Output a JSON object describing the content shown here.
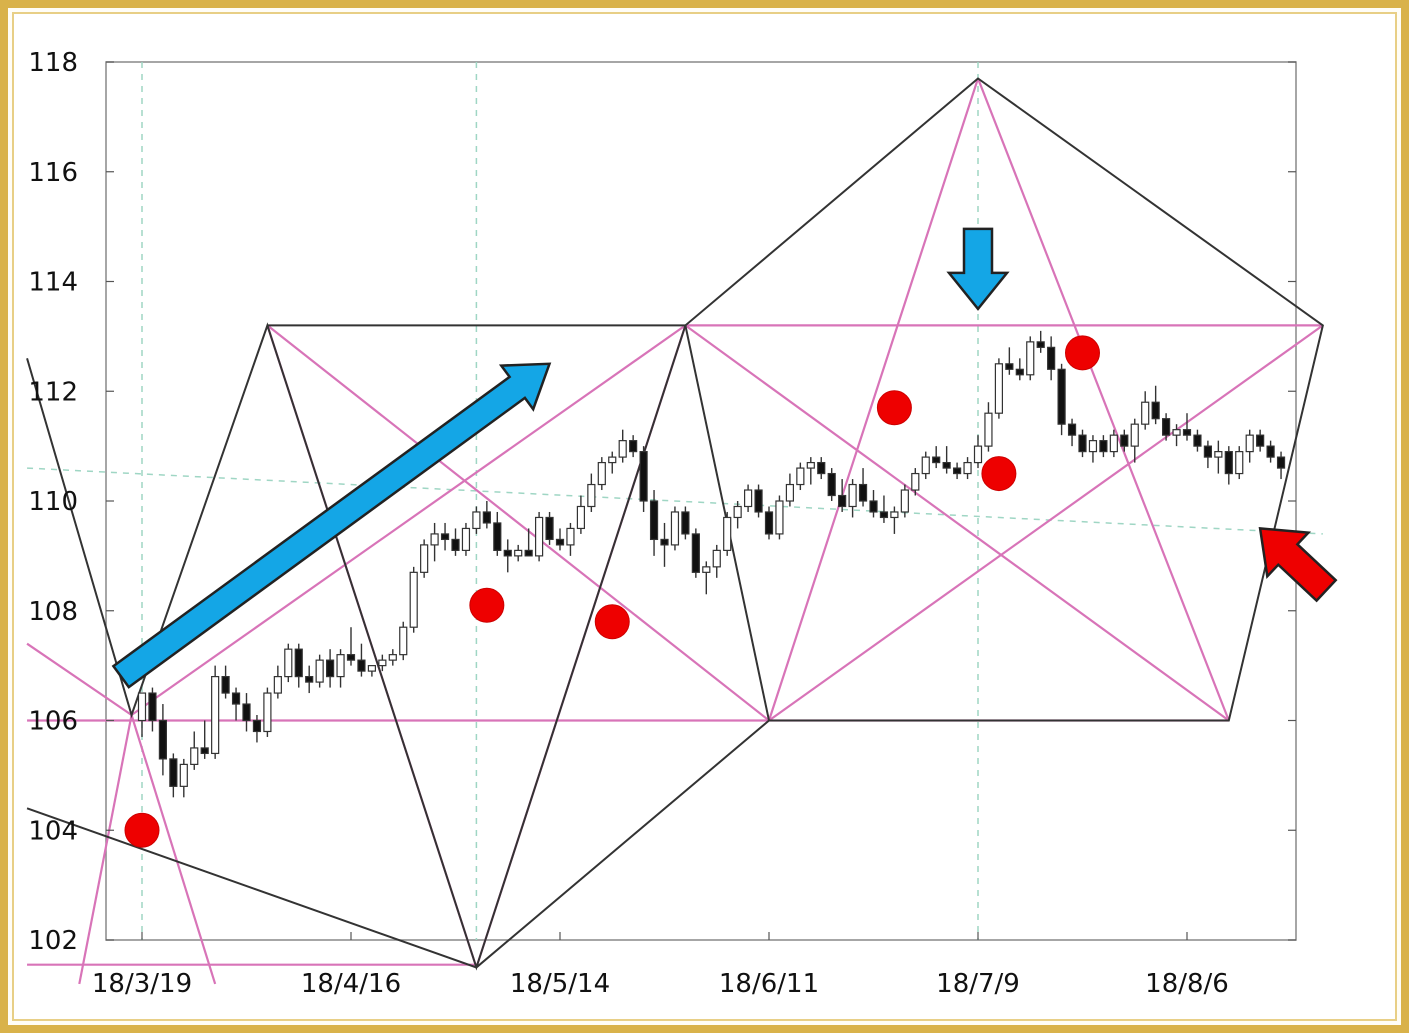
{
  "chart_data": {
    "type": "candlestick",
    "title": "",
    "xlabel": "",
    "ylabel": "",
    "ylim": [
      102,
      118
    ],
    "yticks": [
      102,
      104,
      106,
      108,
      110,
      112,
      114,
      116,
      118
    ],
    "ytick_labels": [
      "102",
      "104",
      "106",
      "108",
      "110",
      "112",
      "114",
      "116",
      "118"
    ],
    "xtick_labels": [
      "18/3/19",
      "18/4/16",
      "18/5/14",
      "18/6/11",
      "18/7/9",
      "18/8/6"
    ],
    "trading_days_per_tick": 20,
    "grid": false,
    "candles": [
      [
        106.0,
        106.5,
        105.7,
        106.5
      ],
      [
        106.5,
        106.6,
        105.8,
        106.0
      ],
      [
        106.0,
        106.3,
        105.0,
        105.3
      ],
      [
        105.3,
        105.4,
        104.6,
        104.8
      ],
      [
        104.8,
        105.3,
        104.6,
        105.2
      ],
      [
        105.2,
        105.8,
        105.1,
        105.5
      ],
      [
        105.5,
        106.0,
        105.3,
        105.4
      ],
      [
        105.4,
        107.0,
        105.3,
        106.8
      ],
      [
        106.8,
        107.0,
        106.4,
        106.5
      ],
      [
        106.5,
        106.6,
        106.0,
        106.3
      ],
      [
        106.3,
        106.5,
        105.8,
        106.0
      ],
      [
        106.0,
        106.1,
        105.6,
        105.8
      ],
      [
        105.8,
        106.6,
        105.7,
        106.5
      ],
      [
        106.5,
        107.0,
        106.4,
        106.8
      ],
      [
        106.8,
        107.4,
        106.7,
        107.3
      ],
      [
        107.3,
        107.4,
        106.6,
        106.8
      ],
      [
        106.8,
        107.0,
        106.5,
        106.7
      ],
      [
        106.7,
        107.2,
        106.6,
        107.1
      ],
      [
        107.1,
        107.3,
        106.6,
        106.8
      ],
      [
        106.8,
        107.3,
        106.6,
        107.2
      ],
      [
        107.2,
        107.7,
        107.0,
        107.1
      ],
      [
        107.1,
        107.4,
        106.8,
        106.9
      ],
      [
        106.9,
        107.0,
        106.8,
        107.0
      ],
      [
        107.0,
        107.2,
        106.9,
        107.1
      ],
      [
        107.1,
        107.3,
        107.0,
        107.2
      ],
      [
        107.2,
        107.8,
        107.1,
        107.7
      ],
      [
        107.7,
        108.8,
        107.6,
        108.7
      ],
      [
        108.7,
        109.3,
        108.6,
        109.2
      ],
      [
        109.2,
        109.6,
        108.9,
        109.4
      ],
      [
        109.4,
        109.6,
        109.1,
        109.3
      ],
      [
        109.3,
        109.5,
        109.0,
        109.1
      ],
      [
        109.1,
        109.6,
        109.0,
        109.5
      ],
      [
        109.5,
        109.9,
        109.4,
        109.8
      ],
      [
        109.8,
        110.0,
        109.5,
        109.6
      ],
      [
        109.6,
        109.8,
        109.0,
        109.1
      ],
      [
        109.1,
        109.3,
        108.7,
        109.0
      ],
      [
        109.0,
        109.2,
        108.9,
        109.1
      ],
      [
        109.1,
        109.5,
        109.0,
        109.0
      ],
      [
        109.0,
        109.8,
        108.9,
        109.7
      ],
      [
        109.7,
        109.8,
        109.2,
        109.3
      ],
      [
        109.3,
        109.5,
        109.1,
        109.2
      ],
      [
        109.2,
        109.6,
        109.0,
        109.5
      ],
      [
        109.5,
        110.1,
        109.4,
        109.9
      ],
      [
        109.9,
        110.5,
        109.8,
        110.3
      ],
      [
        110.3,
        110.8,
        110.2,
        110.7
      ],
      [
        110.7,
        110.9,
        110.5,
        110.8
      ],
      [
        110.8,
        111.3,
        110.7,
        111.1
      ],
      [
        111.1,
        111.2,
        110.8,
        110.9
      ],
      [
        110.9,
        111.0,
        109.8,
        110.0
      ],
      [
        110.0,
        110.2,
        109.0,
        109.3
      ],
      [
        109.3,
        109.6,
        108.8,
        109.2
      ],
      [
        109.2,
        109.9,
        109.1,
        109.8
      ],
      [
        109.8,
        109.9,
        109.3,
        109.4
      ],
      [
        109.4,
        109.5,
        108.6,
        108.7
      ],
      [
        108.7,
        108.9,
        108.3,
        108.8
      ],
      [
        108.8,
        109.2,
        108.6,
        109.1
      ],
      [
        109.1,
        109.8,
        109.0,
        109.7
      ],
      [
        109.7,
        110.0,
        109.5,
        109.9
      ],
      [
        109.9,
        110.3,
        109.8,
        110.2
      ],
      [
        110.2,
        110.3,
        109.7,
        109.8
      ],
      [
        109.8,
        109.9,
        109.3,
        109.4
      ],
      [
        109.4,
        110.1,
        109.3,
        110.0
      ],
      [
        110.0,
        110.5,
        109.9,
        110.3
      ],
      [
        110.3,
        110.7,
        110.2,
        110.6
      ],
      [
        110.6,
        110.8,
        110.3,
        110.7
      ],
      [
        110.7,
        110.8,
        110.4,
        110.5
      ],
      [
        110.5,
        110.6,
        110.0,
        110.1
      ],
      [
        110.1,
        110.4,
        109.8,
        109.9
      ],
      [
        109.9,
        110.4,
        109.7,
        110.3
      ],
      [
        110.3,
        110.6,
        109.9,
        110.0
      ],
      [
        110.0,
        110.2,
        109.7,
        109.8
      ],
      [
        109.8,
        110.1,
        109.6,
        109.7
      ],
      [
        109.7,
        109.9,
        109.4,
        109.8
      ],
      [
        109.8,
        110.3,
        109.7,
        110.2
      ],
      [
        110.2,
        110.6,
        110.1,
        110.5
      ],
      [
        110.5,
        110.9,
        110.4,
        110.8
      ],
      [
        110.8,
        111.0,
        110.6,
        110.7
      ],
      [
        110.7,
        111.0,
        110.5,
        110.6
      ],
      [
        110.6,
        110.7,
        110.4,
        110.5
      ],
      [
        110.5,
        110.8,
        110.4,
        110.7
      ],
      [
        110.7,
        111.2,
        110.6,
        111.0
      ],
      [
        111.0,
        111.8,
        110.9,
        111.6
      ],
      [
        111.6,
        112.6,
        111.5,
        112.5
      ],
      [
        112.5,
        112.8,
        112.3,
        112.4
      ],
      [
        112.4,
        112.6,
        112.2,
        112.3
      ],
      [
        112.3,
        113.0,
        112.2,
        112.9
      ],
      [
        112.9,
        113.1,
        112.7,
        112.8
      ],
      [
        112.8,
        113.0,
        112.2,
        112.4
      ],
      [
        112.4,
        112.5,
        111.2,
        111.4
      ],
      [
        111.4,
        111.5,
        111.0,
        111.2
      ],
      [
        111.2,
        111.3,
        110.8,
        110.9
      ],
      [
        110.9,
        111.2,
        110.7,
        111.1
      ],
      [
        111.1,
        111.2,
        110.8,
        110.9
      ],
      [
        110.9,
        111.3,
        110.8,
        111.2
      ],
      [
        111.2,
        111.3,
        110.9,
        111.0
      ],
      [
        111.0,
        111.5,
        110.7,
        111.4
      ],
      [
        111.4,
        112.0,
        111.3,
        111.8
      ],
      [
        111.8,
        112.1,
        111.4,
        111.5
      ],
      [
        111.5,
        111.6,
        111.1,
        111.2
      ],
      [
        111.2,
        111.4,
        111.0,
        111.3
      ],
      [
        111.3,
        111.6,
        111.1,
        111.2
      ],
      [
        111.2,
        111.3,
        110.9,
        111.0
      ],
      [
        111.0,
        111.1,
        110.6,
        110.8
      ],
      [
        110.8,
        111.1,
        110.5,
        110.9
      ],
      [
        110.9,
        111.0,
        110.3,
        110.5
      ],
      [
        110.5,
        111.0,
        110.4,
        110.9
      ],
      [
        110.9,
        111.3,
        110.7,
        111.2
      ],
      [
        111.2,
        111.3,
        110.9,
        111.0
      ],
      [
        111.0,
        111.1,
        110.7,
        110.8
      ],
      [
        110.8,
        110.9,
        110.4,
        110.6
      ]
    ],
    "annotations": {
      "red_markers": [
        {
          "x": 0,
          "y": 104.0
        },
        {
          "x": 33,
          "y": 108.1
        },
        {
          "x": 45,
          "y": 107.8
        },
        {
          "x": 72,
          "y": 111.7
        },
        {
          "x": 82,
          "y": 110.5
        },
        {
          "x": 90,
          "y": 112.7
        }
      ],
      "blue_up_arrow": {
        "x_from": -2,
        "y_from": 106.8,
        "x_to": 39,
        "y_to": 112.5
      },
      "blue_down_arrow": {
        "x": 80,
        "y": 113.5
      },
      "red_arrow": {
        "x": 107,
        "y": 109.5
      },
      "black_polygon": [
        [
          -11,
          112.6
        ],
        [
          -1,
          106.1
        ],
        [
          12,
          113.2
        ],
        [
          32,
          101.5
        ],
        [
          52,
          113.2
        ],
        [
          80,
          117.7
        ],
        [
          113,
          113.2
        ],
        [
          104,
          106.0
        ],
        [
          60,
          106.0
        ],
        [
          32,
          101.5
        ],
        [
          -11,
          104.4
        ]
      ],
      "black_box": [
        [
          12,
          113.2
        ],
        [
          52,
          113.2
        ],
        [
          60,
          106.0
        ],
        [
          104,
          106.0
        ]
      ],
      "pink_lines": [
        [
          [
            -11,
            106.0
          ],
          [
            104,
            106.0
          ]
        ],
        [
          [
            52,
            113.2
          ],
          [
            113,
            113.2
          ]
        ],
        [
          [
            -11,
            101.55
          ],
          [
            32,
            101.55
          ]
        ],
        [
          [
            -1,
            106.1
          ],
          [
            52,
            113.2
          ]
        ],
        [
          [
            60,
            106.0
          ],
          [
            113,
            113.2
          ]
        ],
        [
          [
            12,
            113.2
          ],
          [
            60,
            106.0
          ]
        ],
        [
          [
            52,
            113.2
          ],
          [
            104,
            106.0
          ]
        ],
        [
          [
            12,
            113.2
          ],
          [
            32,
            101.5
          ]
        ],
        [
          [
            52,
            113.2
          ],
          [
            32,
            101.5
          ]
        ],
        [
          [
            60,
            106.0
          ],
          [
            80,
            117.7
          ]
        ],
        [
          [
            104,
            106.0
          ],
          [
            80,
            117.7
          ]
        ],
        [
          [
            -1,
            106.1
          ],
          [
            7,
            101.2
          ]
        ],
        [
          [
            -1,
            106.1
          ],
          [
            -6,
            101.2
          ]
        ],
        [
          [
            -1,
            106.1
          ],
          [
            -11,
            107.4
          ]
        ]
      ],
      "green_dashed_verticals": [
        32,
        80,
        0
      ],
      "green_dashed_lines": [
        [
          [
            -11,
            110.6
          ],
          [
            113,
            109.4
          ]
        ],
        [
          [
            12,
            113.2
          ],
          [
            60,
            106.0
          ]
        ],
        [
          [
            52,
            113.2
          ],
          [
            104,
            106.0
          ]
        ]
      ]
    }
  }
}
